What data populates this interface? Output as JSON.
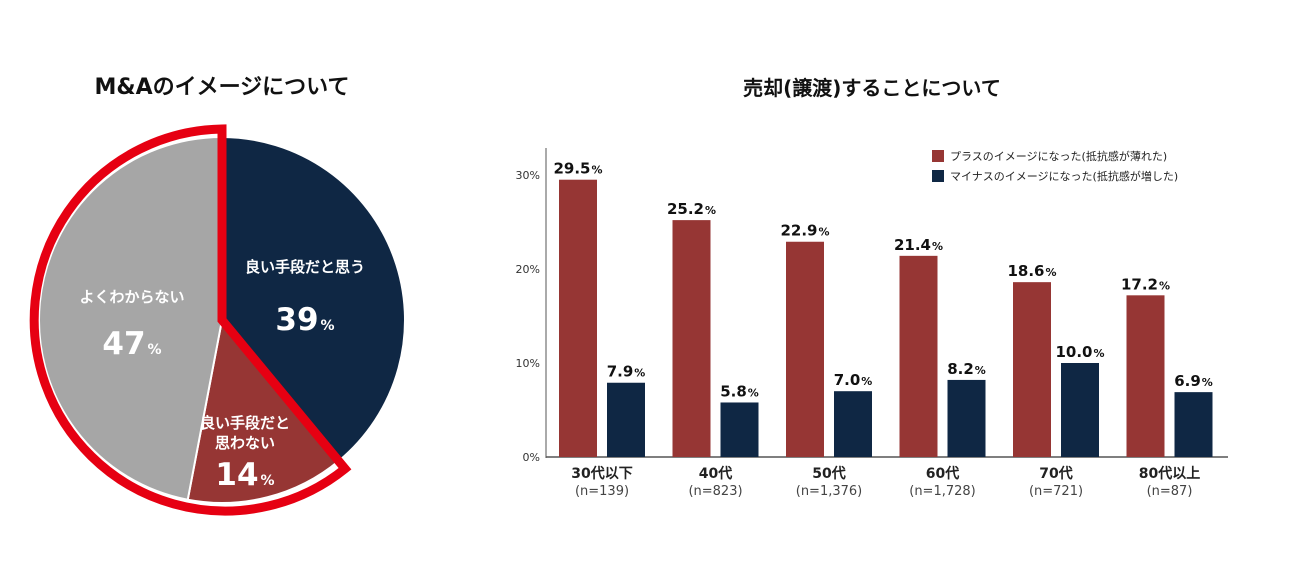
{
  "chart_data": [
    {
      "type": "pie",
      "title": "M&Aのイメージについて",
      "unit": "%",
      "slices": [
        {
          "label": "良い手段だと思う",
          "value": 39,
          "color": "#0f2744"
        },
        {
          "label": "良い手段だと思わない",
          "label_lines": [
            "良い手段だと",
            "思わない"
          ],
          "value": 14,
          "color": "#963634"
        },
        {
          "label": "よくわからない",
          "value": 47,
          "color": "#a6a6a6"
        }
      ],
      "highlight_color": "#e60012"
    },
    {
      "type": "bar",
      "title": "売却(譲渡)することについて",
      "categories": [
        "30代以下",
        "40代",
        "50代",
        "60代",
        "70代",
        "80代以上"
      ],
      "category_n": [
        "(n=139)",
        "(n=823)",
        "(n=1,376)",
        "(n=1,728)",
        "(n=721)",
        "(n=87)"
      ],
      "series": [
        {
          "name": "プラスのイメージになった(抵抗感が薄れた)",
          "values": [
            29.5,
            25.2,
            22.9,
            21.4,
            18.6,
            17.2
          ],
          "color": "#963634"
        },
        {
          "name": "マイナスのイメージになった(抵抗感が増した)",
          "values": [
            7.9,
            5.8,
            7.0,
            8.2,
            10.0,
            6.9
          ],
          "color": "#0f2744"
        }
      ],
      "value_unit": "%",
      "ylim": [
        0,
        30
      ],
      "yticks": [
        "0%",
        "10%",
        "20%",
        "30%"
      ],
      "legend_position": "top-right",
      "grid": false
    }
  ]
}
